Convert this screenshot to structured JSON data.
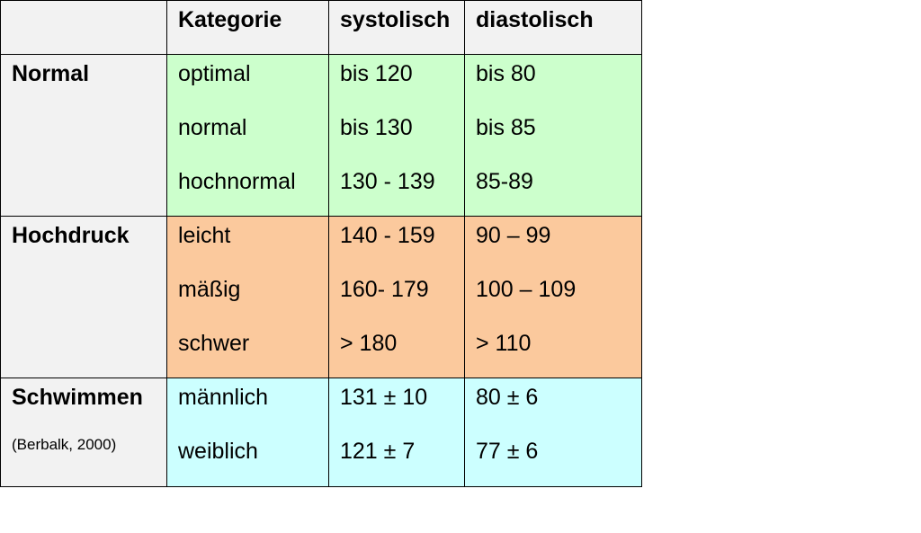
{
  "header": {
    "columns": [
      "Kategorie",
      "systolisch",
      "diastolisch"
    ]
  },
  "groups": [
    {
      "label": "Normal",
      "color": "#ccffcc",
      "rows": [
        [
          "optimal",
          "bis 120",
          "bis 80"
        ],
        [
          "normal",
          "bis 130",
          "bis 85"
        ],
        [
          "hochnormal",
          "130 - 139",
          "85-89"
        ]
      ]
    },
    {
      "label": "Hochdruck",
      "color": "#fbc99d",
      "rows": [
        [
          "leicht",
          "140 - 159",
          "90 – 99"
        ],
        [
          "mäßig",
          "160- 179",
          "100 – 109"
        ],
        [
          "schwer",
          "> 180",
          "> 110"
        ]
      ]
    },
    {
      "label": "Schwimmen",
      "note": "(Berbalk, 2000)",
      "color": "#ccffff",
      "rows": [
        [
          "männlich",
          "131 ± 10",
          "80 ± 6"
        ],
        [
          "weiblich",
          "121 ± 7",
          "77 ± 6"
        ]
      ]
    }
  ]
}
